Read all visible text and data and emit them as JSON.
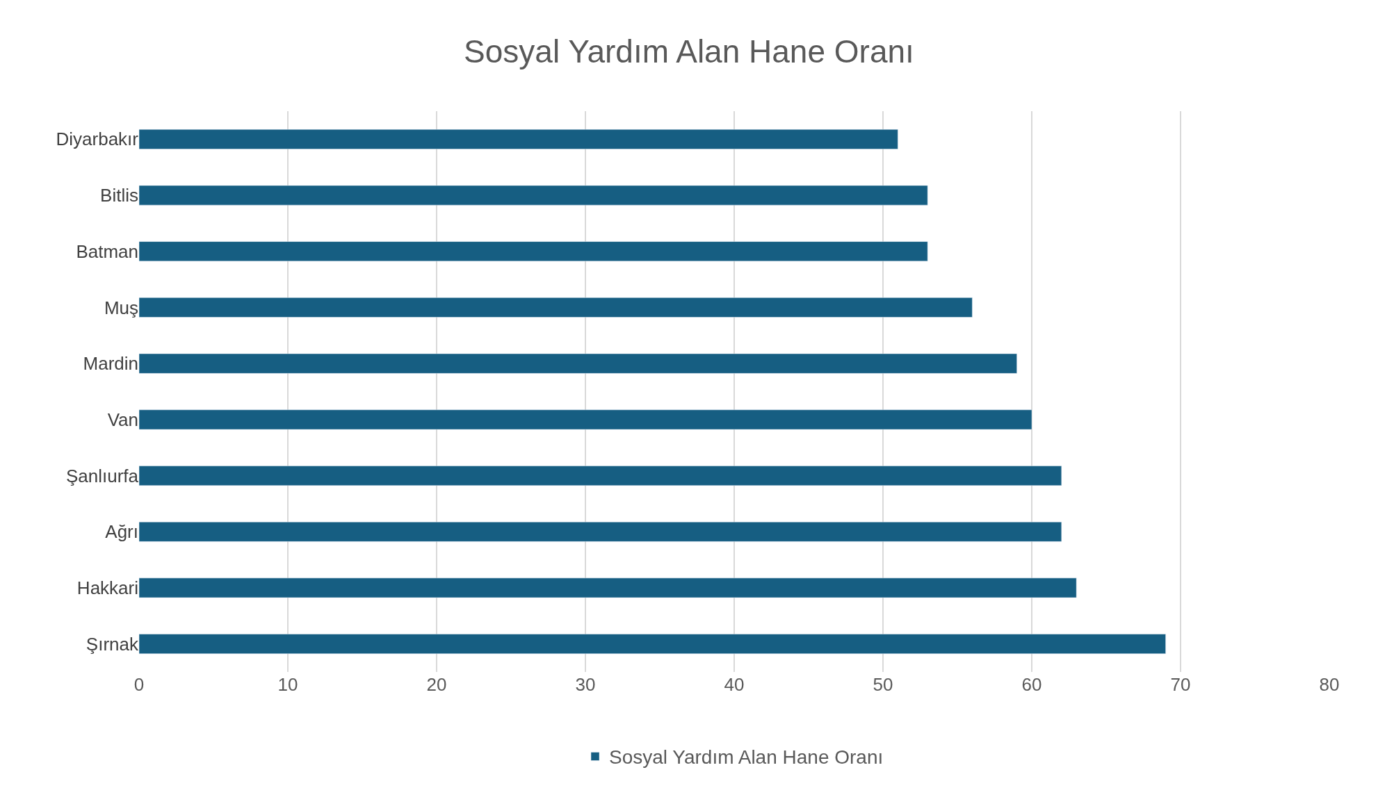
{
  "chart_data": {
    "type": "bar",
    "orientation": "horizontal",
    "title": "Sosyal Yardım Alan Hane Oranı",
    "categories": [
      "Diyarbakır",
      "Bitlis",
      "Batman",
      "Muş",
      "Mardin",
      "Van",
      "Şanlıurfa",
      "Ağrı",
      "Hakkari",
      "Şırnak"
    ],
    "series": [
      {
        "name": "Sosyal Yardım Alan Hane Oranı",
        "color": "#165e82",
        "values": [
          51,
          53,
          53,
          56,
          59,
          60,
          62,
          62,
          63,
          69
        ]
      }
    ],
    "xlim": [
      0,
      80
    ],
    "xticks": [
      0,
      10,
      20,
      30,
      40,
      50,
      60,
      70,
      80
    ],
    "grid": "x",
    "legend": "bottom"
  }
}
